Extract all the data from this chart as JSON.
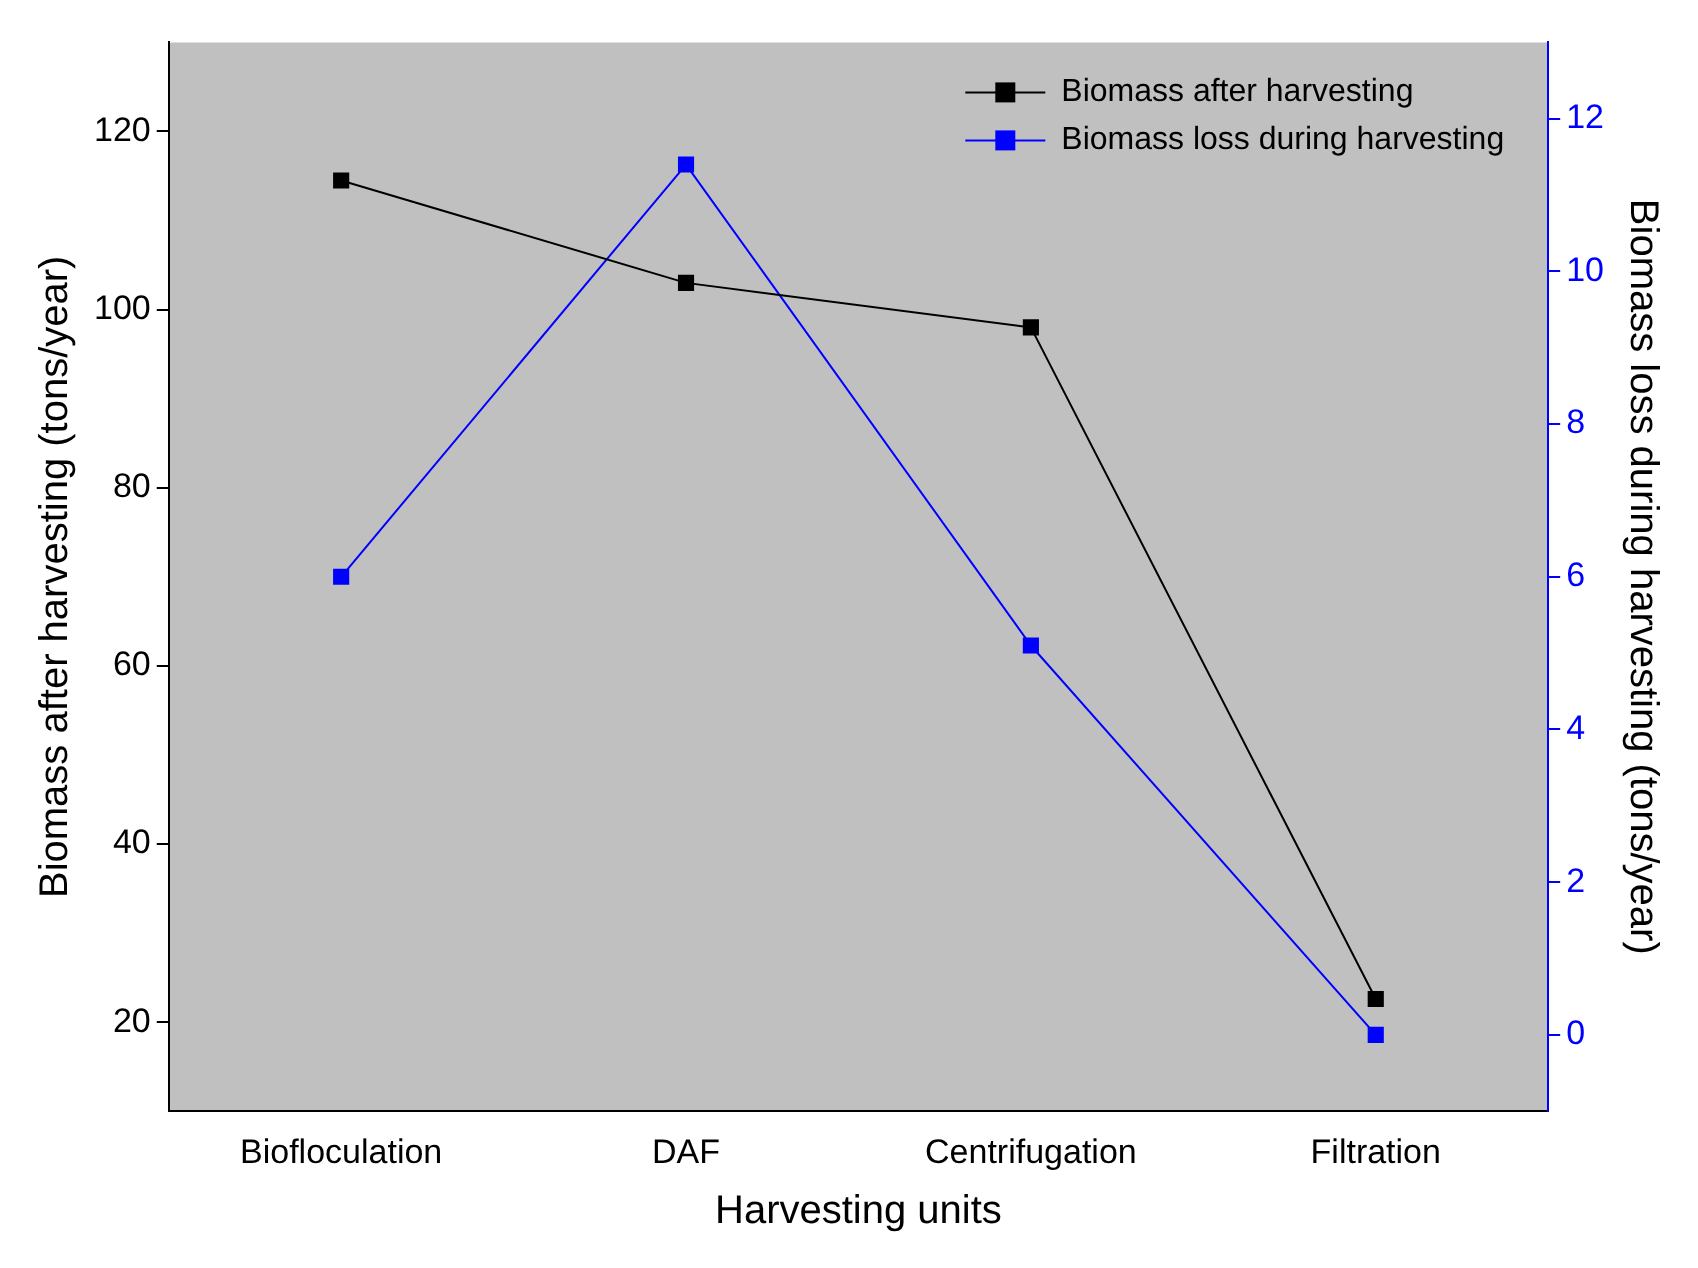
{
  "chart_data": {
    "type": "line",
    "xlabel": "Harvesting units",
    "ylabel": "Biomass after harvesting (tons/year)",
    "y2label": "Biomass loss during harvesting (tons/year)",
    "categories": [
      "Biofloculation",
      "DAF",
      "Centrifugation",
      "Filtration"
    ],
    "series": [
      {
        "name": "Biomass after harvesting",
        "color": "#000000",
        "values": [
          114.5,
          103,
          98,
          22.6
        ]
      },
      {
        "name": "Biomass loss during harvesting",
        "color": "#0000ff",
        "axis": "y2",
        "values": [
          6,
          11.4,
          5.1,
          0
        ]
      }
    ],
    "ylim": [
      10,
      130
    ],
    "yticks": [
      20,
      40,
      60,
      80,
      100,
      120
    ],
    "y2lim": [
      -1,
      13
    ],
    "y2ticks": [
      0,
      2,
      4,
      6,
      8,
      10,
      12
    ],
    "grid": false,
    "legend": "top right",
    "marker": "square",
    "line_style": "solid"
  }
}
